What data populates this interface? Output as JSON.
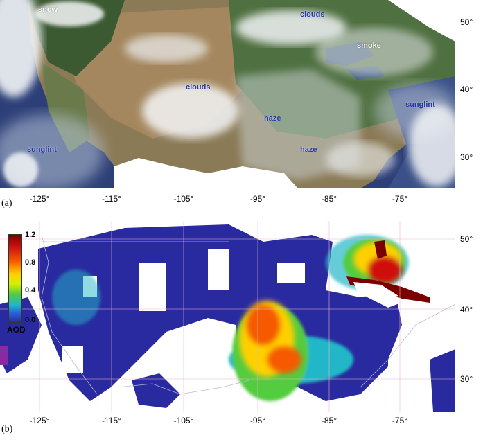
{
  "panel_a": {
    "label": "(a)",
    "features": [
      {
        "id": "snow",
        "text": "snow"
      },
      {
        "id": "clouds-north",
        "text": "clouds"
      },
      {
        "id": "smoke",
        "text": "smoke"
      },
      {
        "id": "clouds-center",
        "text": "clouds"
      },
      {
        "id": "sunglint-east",
        "text": "sunglint"
      },
      {
        "id": "haze-center",
        "text": "haze"
      },
      {
        "id": "sunglint-west",
        "text": "sunglint"
      },
      {
        "id": "haze-south",
        "text": "haze"
      }
    ],
    "lat_ticks": [
      "50°",
      "40°",
      "30°"
    ],
    "lon_ticks": [
      "-125°",
      "-115°",
      "-105°",
      "-95°",
      "-85°",
      "-75°"
    ]
  },
  "panel_b": {
    "label": "(b)",
    "colorbar": {
      "title": "AOD",
      "ticks": [
        "1.2",
        "0.8",
        "0.4",
        "0.0"
      ],
      "colors": [
        "#7a0000",
        "#d01010",
        "#f55a00",
        "#ffd000",
        "#d8f000",
        "#52cc40",
        "#21b7c8",
        "#2860d8",
        "#2a2aa0"
      ]
    },
    "lat_ticks": [
      "50°",
      "40°",
      "30°"
    ],
    "lon_ticks": [
      "-125°",
      "-115°",
      "-105°",
      "-95°",
      "-85°",
      "-75°"
    ]
  }
}
